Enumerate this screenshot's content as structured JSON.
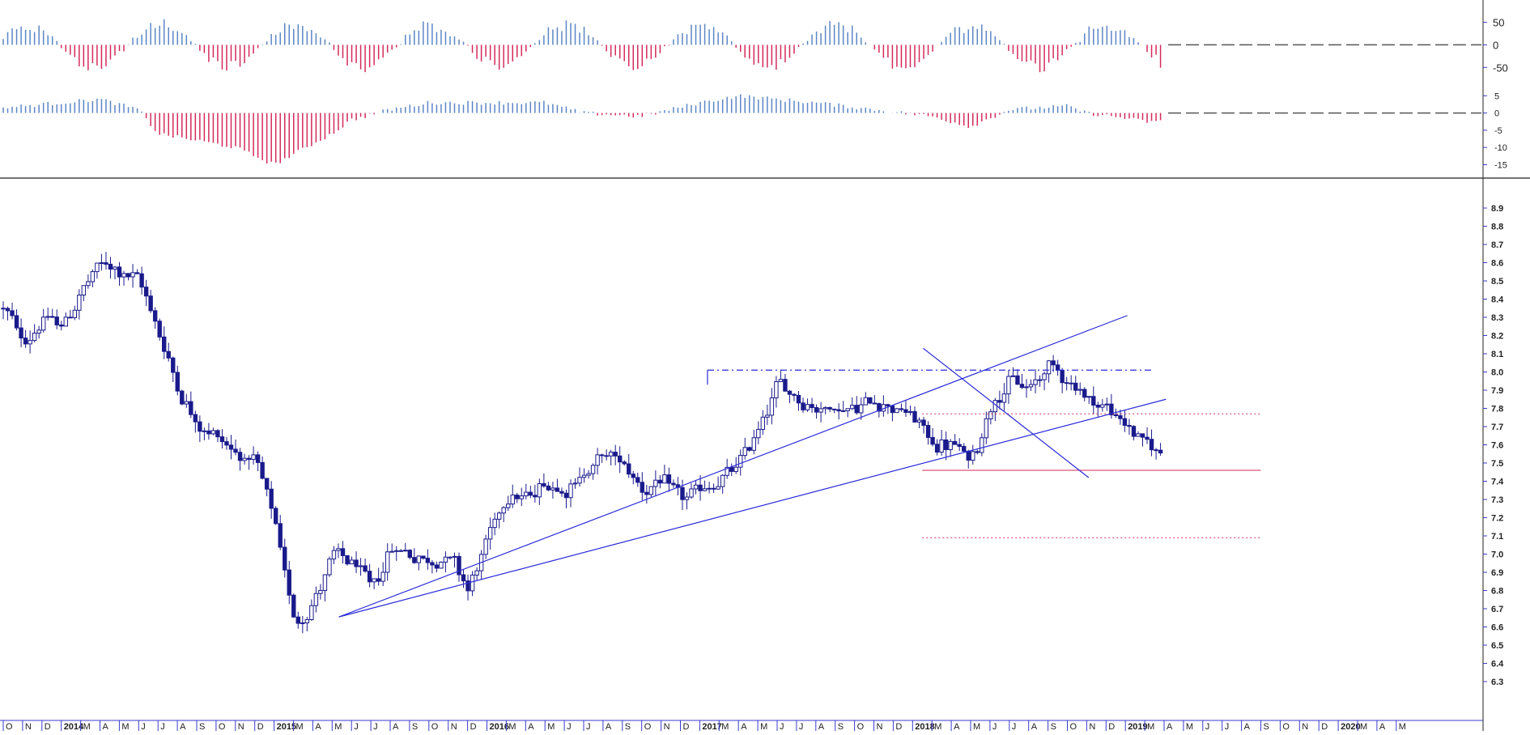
{
  "chart_data": {
    "type": "candlestick",
    "colors": {
      "candle": "#1a1a8c",
      "trendline": "#2a2ad8",
      "histogram_positive": "#5b86c4",
      "histogram_negative": "#d42a5a",
      "support": "#d42a5a",
      "zero_line": "#555555",
      "axis": "#3a3ad0"
    },
    "x_axis": {
      "labels": [
        "O",
        "N",
        "D",
        "2014",
        "M",
        "A",
        "M",
        "J",
        "J",
        "A",
        "S",
        "O",
        "N",
        "D",
        "2015",
        "M",
        "A",
        "M",
        "J",
        "J",
        "A",
        "S",
        "O",
        "N",
        "D",
        "2016",
        "M",
        "A",
        "M",
        "J",
        "J",
        "A",
        "S",
        "O",
        "N",
        "D",
        "2017",
        "M",
        "A",
        "M",
        "J",
        "J",
        "A",
        "S",
        "O",
        "N",
        "D",
        "2018",
        "M",
        "A",
        "M",
        "J",
        "J",
        "A",
        "S",
        "O",
        "N",
        "D",
        "2019",
        "M",
        "A",
        "M",
        "J",
        "J",
        "A",
        "S",
        "O",
        "N",
        "D",
        "2020",
        "M",
        "A",
        "M"
      ],
      "first_index": 0,
      "last_index": 76
    },
    "price_panel": {
      "y_ticks": [
        "8.9",
        "8.8",
        "8.7",
        "8.6",
        "8.5",
        "8.4",
        "8.3",
        "8.2",
        "8.1",
        "8.0",
        "7.9",
        "7.8",
        "7.7",
        "7.6",
        "7.5",
        "7.4",
        "7.3",
        "7.2",
        "7.1",
        "7.0",
        "6.9",
        "6.8",
        "6.7",
        "6.6",
        "6.5",
        "6.4",
        "6.3"
      ],
      "ylim": [
        6.3,
        8.9
      ],
      "anchors": [
        [
          0,
          8.35
        ],
        [
          1,
          8.15
        ],
        [
          2,
          8.3
        ],
        [
          3,
          8.25
        ],
        [
          4,
          8.45
        ],
        [
          5,
          8.6
        ],
        [
          6,
          8.55
        ],
        [
          7,
          8.5
        ],
        [
          8,
          8.2
        ],
        [
          9,
          7.9
        ],
        [
          10,
          7.7
        ],
        [
          11,
          7.65
        ],
        [
          12,
          7.55
        ],
        [
          13,
          7.5
        ],
        [
          14,
          7.15
        ],
        [
          15,
          6.6
        ],
        [
          16,
          6.75
        ],
        [
          17,
          7.0
        ],
        [
          18,
          6.95
        ],
        [
          19,
          6.8
        ],
        [
          20,
          7.05
        ],
        [
          21,
          7.0
        ],
        [
          22,
          6.95
        ],
        [
          23,
          7.0
        ],
        [
          24,
          6.8
        ],
        [
          25,
          7.1
        ],
        [
          26,
          7.35
        ],
        [
          27,
          7.3
        ],
        [
          28,
          7.4
        ],
        [
          29,
          7.35
        ],
        [
          30,
          7.45
        ],
        [
          31,
          7.55
        ],
        [
          32,
          7.5
        ],
        [
          33,
          7.35
        ],
        [
          34,
          7.4
        ],
        [
          35,
          7.3
        ],
        [
          36,
          7.35
        ],
        [
          37,
          7.4
        ],
        [
          38,
          7.5
        ],
        [
          39,
          7.7
        ],
        [
          40,
          7.95
        ],
        [
          41,
          7.85
        ],
        [
          42,
          7.8
        ],
        [
          43,
          7.8
        ],
        [
          44,
          7.8
        ],
        [
          45,
          7.85
        ],
        [
          46,
          7.8
        ],
        [
          47,
          7.75
        ],
        [
          48,
          7.6
        ],
        [
          49,
          7.6
        ],
        [
          50,
          7.5
        ],
        [
          51,
          7.85
        ],
        [
          52,
          7.95
        ],
        [
          53,
          7.9
        ],
        [
          54,
          8.05
        ],
        [
          55,
          7.95
        ],
        [
          56,
          7.85
        ],
        [
          57,
          7.8
        ],
        [
          58,
          7.7
        ],
        [
          59,
          7.6
        ],
        [
          60,
          7.53
        ]
      ],
      "annotations": {
        "resistance_dashdot": {
          "y": 8.01,
          "x_start": 36.4,
          "x_end": 59.5
        },
        "support_levels": [
          {
            "y": 7.77,
            "x_start": 47.5,
            "x_end": 65,
            "style": "dotted"
          },
          {
            "y": 7.46,
            "x_start": 47.5,
            "x_end": 65,
            "style": "solid"
          },
          {
            "y": 7.09,
            "x_start": 47.5,
            "x_end": 65,
            "style": "dotted"
          }
        ],
        "trendlines": [
          {
            "from": [
              17.35,
              6.655
            ],
            "to": [
              58.1,
              8.31
            ]
          },
          {
            "from": [
              17.35,
              6.655
            ],
            "to": [
              60.1,
              7.85
            ]
          },
          {
            "from": [
              47.55,
              8.13
            ],
            "to": [
              56.1,
              7.42
            ]
          }
        ]
      }
    },
    "upper_oscillator": {
      "y_ticks": [
        "50",
        "0",
        "-50"
      ],
      "ylim": [
        -80,
        85
      ],
      "phase": 0.9,
      "amp_up": 55,
      "amp_down": 60
    },
    "lower_oscillator": {
      "y_ticks": [
        "5",
        "0",
        "-5",
        "-10",
        "-15"
      ],
      "ylim": [
        -17,
        6
      ],
      "segments": [
        [
          0,
          1.5
        ],
        [
          3,
          3
        ],
        [
          5,
          4
        ],
        [
          7,
          1
        ],
        [
          8,
          -6
        ],
        [
          12,
          -10
        ],
        [
          14,
          -15
        ],
        [
          17,
          -6
        ],
        [
          18,
          -2
        ],
        [
          20,
          1
        ],
        [
          22,
          3
        ],
        [
          28,
          3
        ],
        [
          30,
          0
        ],
        [
          33,
          -1
        ],
        [
          36,
          3
        ],
        [
          38,
          5
        ],
        [
          42,
          3
        ],
        [
          45,
          1
        ],
        [
          48,
          -1
        ],
        [
          50,
          -4
        ],
        [
          52,
          1
        ],
        [
          55,
          2
        ],
        [
          56,
          0
        ],
        [
          58,
          -1.5
        ],
        [
          59,
          -2.5
        ],
        [
          60,
          -2.5
        ]
      ]
    }
  }
}
